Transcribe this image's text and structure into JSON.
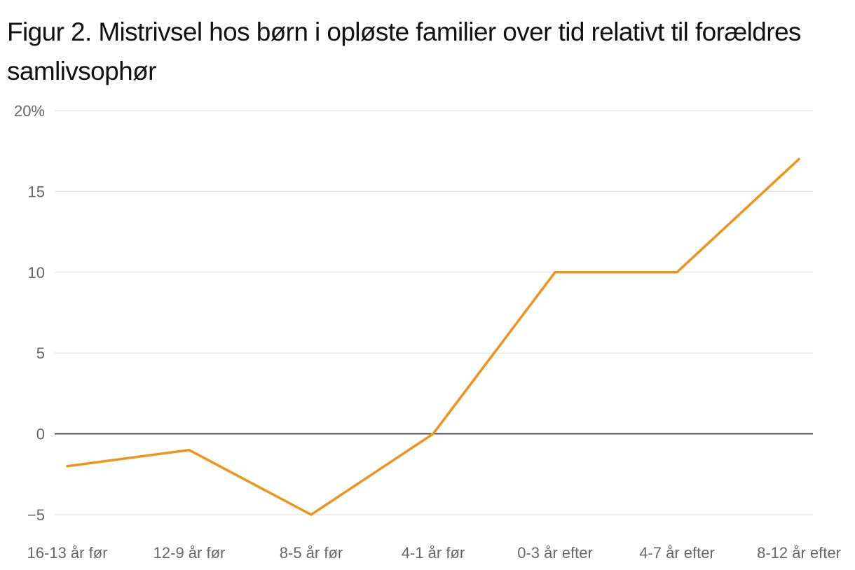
{
  "chart_data": {
    "type": "line",
    "title": "Figur 2. Mistrivsel hos børn i opløste familier over tid relativt til forældres samlivsophør",
    "xlabel": "",
    "ylabel": "",
    "categories": [
      "16-13 år før",
      "12-9 år før",
      "8-5 år før",
      "4-1 år før",
      "0-3 år efter",
      "4-7 år efter",
      "8-12 år efter"
    ],
    "series": [
      {
        "values": [
          -2,
          -1,
          -5,
          0,
          10,
          10,
          17
        ]
      }
    ],
    "ylim": [
      -5,
      20
    ],
    "yticks": [
      -5,
      0,
      5,
      10,
      15,
      20
    ],
    "ytick_labels": [
      "−5",
      "0",
      "5",
      "10",
      "15",
      "20%"
    ],
    "grid": true,
    "legend": "none",
    "colors": {
      "line": "#f0931b",
      "grid": "#e3e3e3",
      "zero_line": "#222222",
      "tick_text": "#666666"
    }
  }
}
